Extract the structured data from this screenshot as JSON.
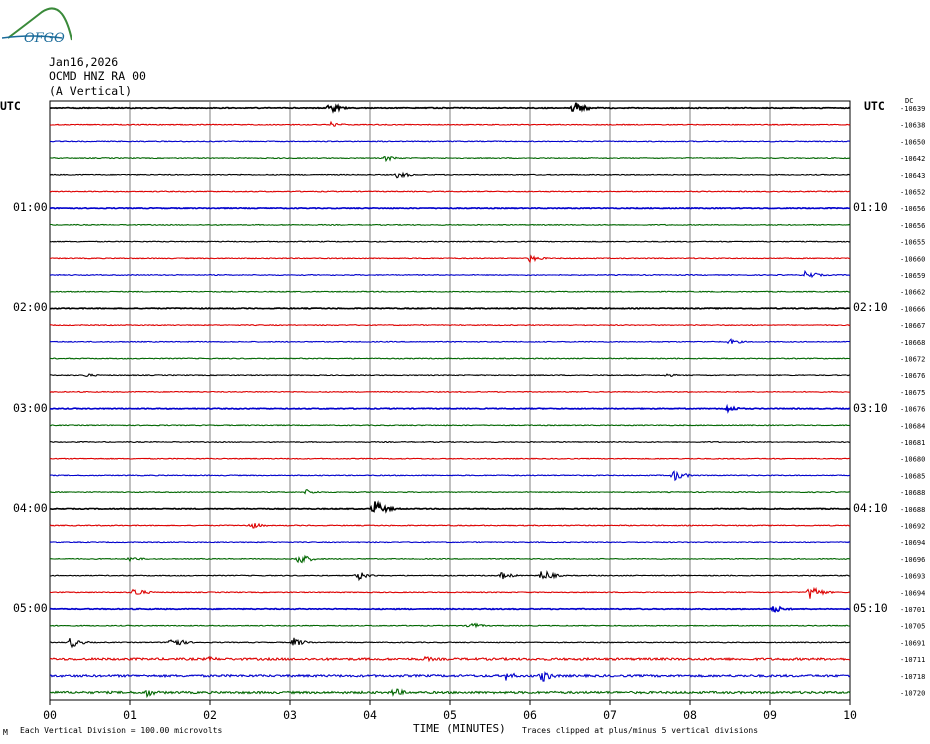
{
  "logo": {
    "text": "OFGO",
    "color": "#1a6b9a"
  },
  "header": {
    "date": "Jan16,2026",
    "station": "OCMD HNZ RA 00",
    "component": "(A Vertical)"
  },
  "left_timezone": "UTC",
  "right_timezone": "UTC",
  "right_header_tag": "DC",
  "left_time_labels": [
    "01:00",
    "02:00",
    "03:00",
    "04:00",
    "05:00"
  ],
  "right_time_labels": [
    "01:10",
    "02:10",
    "03:10",
    "04:10",
    "05:10"
  ],
  "footer": {
    "tiny_mark": "M",
    "scale_note": "Each Vertical Division =  100.00 microvolts",
    "clip_note": "Traces clipped at plus/minus 5 vertical divisions"
  },
  "colors": {
    "black": "#000000",
    "red": "#dd0000",
    "blue": "#0000cc",
    "green": "#006600",
    "grid": "#7f7f7f"
  },
  "chart_data": {
    "type": "line",
    "title": "",
    "xlabel": "TIME (MINUTES)",
    "ylabel": "",
    "xlim": [
      0,
      10
    ],
    "x_ticks": [
      "00",
      "01",
      "02",
      "03",
      "04",
      "05",
      "06",
      "07",
      "08",
      "09",
      "10"
    ],
    "grid": "vertical lines at each minute",
    "trace_minutes": 10,
    "trace_colors_cycle": [
      "black",
      "red",
      "blue",
      "green"
    ],
    "dc_offsets": [
      -10639,
      -10638,
      -10650,
      -10642,
      -10643,
      -10652,
      -10656,
      -10656,
      -10655,
      -10660,
      -10659,
      -10662,
      -10666,
      -10667,
      -10668,
      -10672,
      -10676,
      -10675,
      -10676,
      -10684,
      -10681,
      -10680,
      -10685,
      -10688,
      -10688,
      -10692,
      -10694,
      -10696,
      -10693,
      -10694,
      -10701,
      -10705,
      -10691,
      -10711,
      -10718,
      -10720
    ],
    "events": [
      {
        "trace": 0,
        "minute": 3.5,
        "amp": 6
      },
      {
        "trace": 0,
        "minute": 6.55,
        "amp": 8
      },
      {
        "trace": 1,
        "minute": 3.5,
        "amp": 3
      },
      {
        "trace": 3,
        "minute": 4.2,
        "amp": 3
      },
      {
        "trace": 4,
        "minute": 4.35,
        "amp": 4
      },
      {
        "trace": 9,
        "minute": 6.0,
        "amp": 4
      },
      {
        "trace": 10,
        "minute": 9.45,
        "amp": 5
      },
      {
        "trace": 14,
        "minute": 8.5,
        "amp": 3
      },
      {
        "trace": 16,
        "minute": 0.45,
        "amp": 2
      },
      {
        "trace": 16,
        "minute": 7.7,
        "amp": 2
      },
      {
        "trace": 18,
        "minute": 8.45,
        "amp": 4
      },
      {
        "trace": 22,
        "minute": 7.8,
        "amp": 6
      },
      {
        "trace": 23,
        "minute": 3.2,
        "amp": 3
      },
      {
        "trace": 24,
        "minute": 4.05,
        "amp": 9
      },
      {
        "trace": 25,
        "minute": 2.5,
        "amp": 4
      },
      {
        "trace": 27,
        "minute": 1.0,
        "amp": 3
      },
      {
        "trace": 27,
        "minute": 3.1,
        "amp": 7
      },
      {
        "trace": 28,
        "minute": 3.85,
        "amp": 5
      },
      {
        "trace": 28,
        "minute": 5.65,
        "amp": 4
      },
      {
        "trace": 28,
        "minute": 6.15,
        "amp": 7
      },
      {
        "trace": 29,
        "minute": 1.05,
        "amp": 5
      },
      {
        "trace": 29,
        "minute": 9.5,
        "amp": 8
      },
      {
        "trace": 30,
        "minute": 9.05,
        "amp": 4
      },
      {
        "trace": 31,
        "minute": 5.25,
        "amp": 4
      },
      {
        "trace": 32,
        "minute": 0.25,
        "amp": 6
      },
      {
        "trace": 32,
        "minute": 1.5,
        "amp": 8
      },
      {
        "trace": 32,
        "minute": 3.05,
        "amp": 5
      },
      {
        "trace": 33,
        "minute": 2.0,
        "amp": 3
      },
      {
        "trace": 33,
        "minute": 4.7,
        "amp": 3
      },
      {
        "trace": 34,
        "minute": 5.7,
        "amp": 5
      },
      {
        "trace": 34,
        "minute": 6.15,
        "amp": 7
      },
      {
        "trace": 35,
        "minute": 1.2,
        "amp": 5
      },
      {
        "trace": 35,
        "minute": 4.3,
        "amp": 5
      }
    ]
  }
}
